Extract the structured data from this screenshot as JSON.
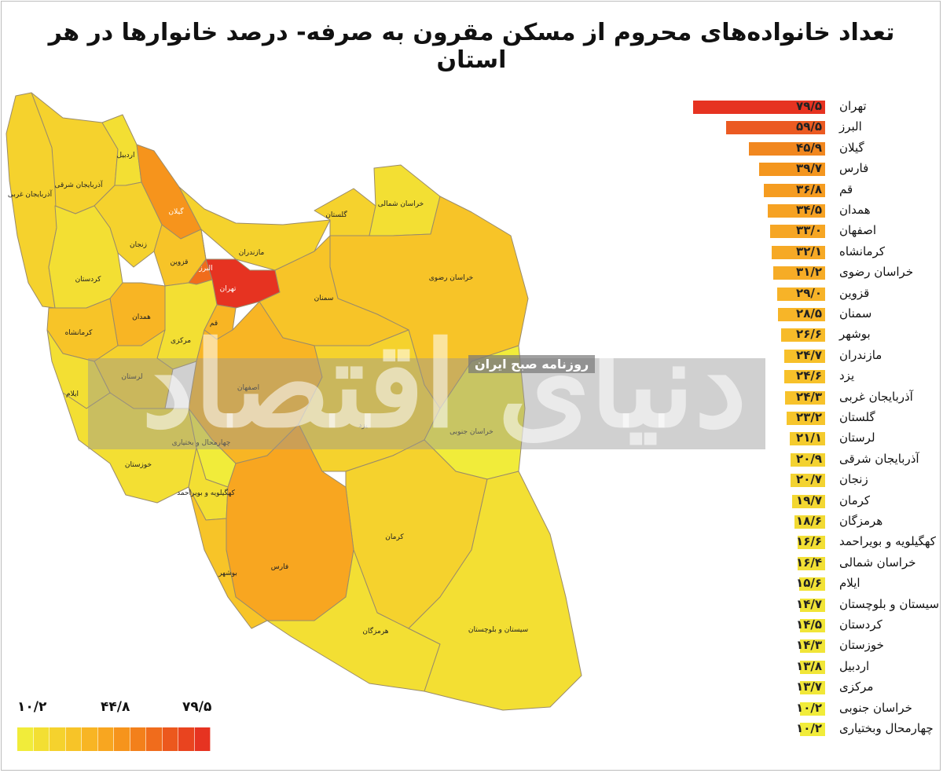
{
  "title": "تعداد خانواده‌های محروم از مسکن مقرون به صرفه- درصد خانوارها در هر استان",
  "watermark": {
    "main": "دنیای اقتصاد",
    "sub": "روزنامه صبح ایران"
  },
  "legend": {
    "min": "۱۰/۲",
    "mid": "۴۴/۸",
    "max": "۷۹/۵",
    "colors": [
      "#f1ec3a",
      "#f3df33",
      "#f5d22d",
      "#f7c428",
      "#f8b524",
      "#f8a620",
      "#f6941c",
      "#f3801b",
      "#f06c1c",
      "#ec581d",
      "#e9441f",
      "#e63321"
    ]
  },
  "ranking": [
    {
      "name": "تهران",
      "label": "۷۹/۵",
      "value": 79.5,
      "color": "#e63321"
    },
    {
      "name": "البرز",
      "label": "۵۹/۵",
      "value": 59.5,
      "color": "#eb5a22"
    },
    {
      "name": "گیلان",
      "label": "۴۵/۹",
      "value": 45.9,
      "color": "#f1871f"
    },
    {
      "name": "فارس",
      "label": "۳۹/۷",
      "value": 39.7,
      "color": "#f4961e"
    },
    {
      "name": "قم",
      "label": "۳۶/۸",
      "value": 36.8,
      "color": "#f59c20"
    },
    {
      "name": "همدان",
      "label": "۳۴/۵",
      "value": 34.5,
      "color": "#f6a223"
    },
    {
      "name": "اصفهان",
      "label": "۳۳/۰",
      "value": 33.0,
      "color": "#f6a624"
    },
    {
      "name": "کرمانشاه",
      "label": "۳۲/۱",
      "value": 32.1,
      "color": "#f6a925"
    },
    {
      "name": "خراسان رضوی",
      "label": "۳۱/۲",
      "value": 31.2,
      "color": "#f6ac26"
    },
    {
      "name": "قزوین",
      "label": "۲۹/۰",
      "value": 29.0,
      "color": "#f7b328"
    },
    {
      "name": "سمنان",
      "label": "۲۸/۵",
      "value": 28.5,
      "color": "#f7b528"
    },
    {
      "name": "بوشهر",
      "label": "۲۶/۶",
      "value": 26.6,
      "color": "#f7bb29"
    },
    {
      "name": "مازندران",
      "label": "۲۴/۷",
      "value": 24.7,
      "color": "#f7c02a"
    },
    {
      "name": "یزد",
      "label": "۲۴/۶",
      "value": 24.6,
      "color": "#f7c12a"
    },
    {
      "name": "آذربایجان غربی",
      "label": "۲۴/۳",
      "value": 24.3,
      "color": "#f7c22b"
    },
    {
      "name": "گلستان",
      "label": "۲۳/۲",
      "value": 23.2,
      "color": "#f6c52c"
    },
    {
      "name": "لرستان",
      "label": "۲۱/۱",
      "value": 21.1,
      "color": "#f4cb2e"
    },
    {
      "name": "آذربایجان شرقی",
      "label": "۲۰/۹",
      "value": 20.9,
      "color": "#f3d230"
    },
    {
      "name": "زنجان",
      "label": "۲۰/۷",
      "value": 20.7,
      "color": "#f3d331"
    },
    {
      "name": "کرمان",
      "label": "۱۹/۷",
      "value": 19.7,
      "color": "#f3d732"
    },
    {
      "name": "هرمزگان",
      "label": "۱۸/۶",
      "value": 18.6,
      "color": "#f2da33"
    },
    {
      "name": "کهگیلویه و بویراحمد",
      "label": "۱۶/۶",
      "value": 16.6,
      "color": "#f2df34"
    },
    {
      "name": "خراسان شمالی",
      "label": "۱۶/۴",
      "value": 16.4,
      "color": "#f2e035"
    },
    {
      "name": "ایلام",
      "label": "۱۵/۶",
      "value": 15.6,
      "color": "#f2e236"
    },
    {
      "name": "سیستان و بلوچستان",
      "label": "۱۴/۷",
      "value": 14.7,
      "color": "#f1e437"
    },
    {
      "name": "کردستان",
      "label": "۱۴/۵",
      "value": 14.5,
      "color": "#f1e537"
    },
    {
      "name": "خوزستان",
      "label": "۱۴/۳",
      "value": 14.3,
      "color": "#f1e538"
    },
    {
      "name": "اردبیل",
      "label": "۱۳/۸",
      "value": 13.8,
      "color": "#f1e638"
    },
    {
      "name": "مرکزی",
      "label": "۱۳/۷",
      "value": 13.7,
      "color": "#f1e738"
    },
    {
      "name": "خراسان جنوبی",
      "label": "۱۰/۲",
      "value": 10.2,
      "color": "#f1ec3a"
    },
    {
      "name": "چهارمحال وبختیاری",
      "label": "۱۰/۲",
      "value": 10.2,
      "color": "#f1ec3a"
    }
  ],
  "map_labels": [
    {
      "name": "آذربایجان شرقی",
      "value": 20.9
    },
    {
      "name": "آذربایجان غربی",
      "value": 24.3
    },
    {
      "name": "اردبیل",
      "value": 13.8
    },
    {
      "name": "گیلان",
      "value": 45.9
    },
    {
      "name": "زنجان",
      "value": 20.7
    },
    {
      "name": "قزوین",
      "value": 29.0
    },
    {
      "name": "البرز",
      "value": 59.5
    },
    {
      "name": "تهران",
      "value": 79.5
    },
    {
      "name": "مازندران",
      "value": 24.7
    },
    {
      "name": "گلستان",
      "value": 23.2
    },
    {
      "name": "خراسان شمالی",
      "value": 16.4
    },
    {
      "name": "خراسان رضوی",
      "value": 31.2
    },
    {
      "name": "سمنان",
      "value": 28.5
    },
    {
      "name": "کردستان",
      "value": 14.5
    },
    {
      "name": "همدان",
      "value": 34.5
    },
    {
      "name": "کرمانشاه",
      "value": 32.1
    },
    {
      "name": "مرکزی",
      "value": 13.7
    },
    {
      "name": "قم",
      "value": 36.8
    },
    {
      "name": "لرستان",
      "value": 21.1
    },
    {
      "name": "ایلام",
      "value": 15.6
    },
    {
      "name": "اصفهان",
      "value": 33.0
    },
    {
      "name": "یزد",
      "value": 24.6
    },
    {
      "name": "خراسان جنوبی",
      "value": 10.2
    },
    {
      "name": "خوزستان",
      "value": 14.3
    },
    {
      "name": "چهارمحال و بختیاری",
      "value": 10.2
    },
    {
      "name": "کهگیلویه و بویراحمد",
      "value": 16.6
    },
    {
      "name": "کرمان",
      "value": 19.7
    },
    {
      "name": "فارس",
      "value": 39.7
    },
    {
      "name": "بوشهر",
      "value": 26.6
    },
    {
      "name": "هرمزگان",
      "value": 18.6
    },
    {
      "name": "سیستان و بلوچستان",
      "value": 14.7
    }
  ]
}
